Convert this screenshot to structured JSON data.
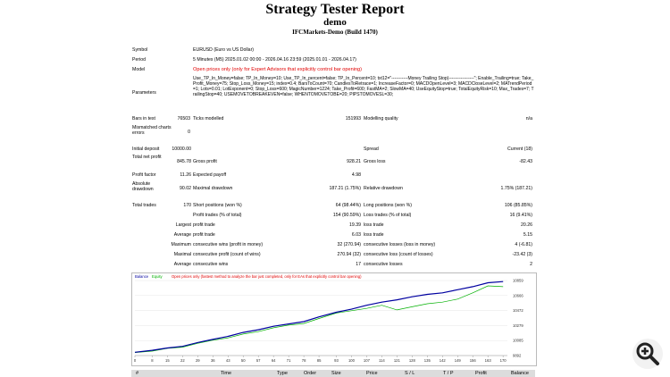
{
  "header": {
    "title": "Strategy Tester Report",
    "subtitle": "demo",
    "server": "IFCMarkets-Demo (Build 1470)"
  },
  "info": {
    "symbol_label": "Symbol",
    "symbol_value": "EURUSD (Euro vs US Dollar)",
    "period_label": "Period",
    "period_value": "5 Minutes (M5) 2025.01.02 00:00 - 2026.04.16 23:59 (2025.01.01 - 2026.04.17)",
    "model_label": "Model",
    "model_value": "Open prices only (only for Expert Advisors that explicitly control bar opening)",
    "parameters_label": "Parameters",
    "parameters_value": "Use_TP_In_Money=false; TP_In_Money=10; Use_TP_In_percent=false; TP_In_Percent=10; txt12=\"-----------Money Trailing Stop)-----------------\"; Enable_Trailing=true; Take_Profit_Money=75; Stop_Loss_Money=15; index=0.4; BarsToCount=70; CandlesToRetrace=1; IncreaseFactor=0; MACDOpenLevel=3; MACDCloseLevel=2; MATrendPeriod=1; Lots=0.01; LotExponent=0; Stop_Loss=600; MagicNumber=1224; Take_Profit=600; FastMA=2; SlowMA=40; UseEquityStop=true; TotalEquityRisk=10; Max_Trades=7; TrailingStop=40; USEMOVETOBREAKEVEN=false; WHENTOMOVETOBE=20; PIPSTOMOVESL=30;"
  },
  "stats": {
    "bars_label": "Bars in test",
    "bars": "76503",
    "ticks_label": "Ticks modelled",
    "ticks": "151993",
    "mq_label": "Modelling quality",
    "mq": "n/a",
    "mismatch_label": "Mismatched charts errors",
    "mismatch": "0",
    "deposit_label": "Initial deposit",
    "deposit": "10000.00",
    "spread_label": "Spread",
    "spread": "Current (18)",
    "netprofit_label": "Total net profit",
    "netprofit": "845.78",
    "grossprofit_label": "Gross profit",
    "grossprofit": "928.21",
    "grossloss_label": "Gross loss",
    "grossloss": "-82.43",
    "pf_label": "Profit factor",
    "pf": "11.26",
    "ep_label": "Expected payoff",
    "ep": "4.98",
    "absdd_label": "Absolute drawdown",
    "absdd": "90.02",
    "maxdd_label": "Maximal drawdown",
    "maxdd": "187.21 (1.75%)",
    "reldd_label": "Relative drawdown",
    "reldd": "1.75% (187.21)",
    "trades_label": "Total trades",
    "trades": "170",
    "short_label": "Short positions (won %)",
    "short": "64 (98.44%)",
    "long_label": "Long positions (won %)",
    "long": "106 (85.85%)",
    "pt_label": "Profit trades (% of total)",
    "pt": "154 (90.59%)",
    "lt_label": "Loss trades (% of total)",
    "lt": "16 (9.41%)",
    "largest": "Largest",
    "lpt_label": "profit trade",
    "lpt": "19.39",
    "llt_label": "loss trade",
    "llt": "20.26",
    "average": "Average",
    "apt_label": "profit trade",
    "apt": "6.03",
    "alt_label": "loss trade",
    "alt": "5.15",
    "maximum": "Maximum",
    "mcw_label": "consecutive wins (profit in money)",
    "mcw": "32 (270.94)",
    "mcl_label": "consecutive losses (loss in money)",
    "mcl": "4 (-6.81)",
    "maximal": "Maximal",
    "mcp_label": "consecutive profit (count of wins)",
    "mcp": "270.94 (32)",
    "mcll_label": "consecutive loss (count of losses)",
    "mcll": "-23.42 (3)",
    "average2": "Average",
    "acw_label": "consecutive wins",
    "acw": "17",
    "acl_label": "consecutive losses",
    "acl": "2"
  },
  "chart_data": {
    "type": "line",
    "legend_balance": "Balance",
    "legend_equity": "Equity",
    "legend_note": "Open prices only (fastest method to analyze the bar just completed, only for EAs that explicitly control bar opening)",
    "x_ticks": [
      "0",
      "8",
      "15",
      "22",
      "29",
      "36",
      "43",
      "50",
      "57",
      "64",
      "71",
      "78",
      "85",
      "93",
      "100",
      "107",
      "114",
      "121",
      "128",
      "135",
      "142",
      "149",
      "156",
      "163",
      "170"
    ],
    "y_ticks": [
      "10859",
      "10666",
      "10472",
      "10279",
      "10085",
      "9892"
    ],
    "ylim": [
      9892,
      10859
    ],
    "xlim": [
      0,
      172
    ],
    "balance": [
      [
        0,
        9935
      ],
      [
        8,
        9960
      ],
      [
        15,
        9990
      ],
      [
        22,
        10010
      ],
      [
        29,
        10060
      ],
      [
        36,
        10100
      ],
      [
        43,
        10140
      ],
      [
        50,
        10190
      ],
      [
        57,
        10225
      ],
      [
        64,
        10270
      ],
      [
        71,
        10300
      ],
      [
        78,
        10330
      ],
      [
        85,
        10390
      ],
      [
        93,
        10450
      ],
      [
        100,
        10490
      ],
      [
        107,
        10540
      ],
      [
        114,
        10580
      ],
      [
        121,
        10610
      ],
      [
        128,
        10650
      ],
      [
        135,
        10680
      ],
      [
        142,
        10700
      ],
      [
        149,
        10740
      ],
      [
        156,
        10780
      ],
      [
        163,
        10830
      ],
      [
        170,
        10845
      ]
    ],
    "equity": [
      [
        0,
        9930
      ],
      [
        8,
        9950
      ],
      [
        15,
        9985
      ],
      [
        22,
        10000
      ],
      [
        29,
        10050
      ],
      [
        36,
        10090
      ],
      [
        43,
        10120
      ],
      [
        50,
        10170
      ],
      [
        57,
        10200
      ],
      [
        64,
        10250
      ],
      [
        71,
        10285
      ],
      [
        78,
        10305
      ],
      [
        85,
        10370
      ],
      [
        93,
        10440
      ],
      [
        100,
        10470
      ],
      [
        107,
        10500
      ],
      [
        114,
        10540
      ],
      [
        121,
        10480
      ],
      [
        128,
        10520
      ],
      [
        135,
        10560
      ],
      [
        142,
        10580
      ],
      [
        149,
        10620
      ],
      [
        156,
        10700
      ],
      [
        163,
        10790
      ],
      [
        170,
        10780
      ]
    ]
  },
  "table": {
    "cols": [
      "#",
      "Time",
      "Type",
      "Order",
      "Size",
      "Price",
      "S / L",
      "T / P",
      "Profit",
      "Balance"
    ]
  },
  "colors": {
    "balance": "#0000a0",
    "equity": "#00b000",
    "red": "#e00000"
  },
  "icons": {
    "zoom": "zoom-in-icon"
  }
}
